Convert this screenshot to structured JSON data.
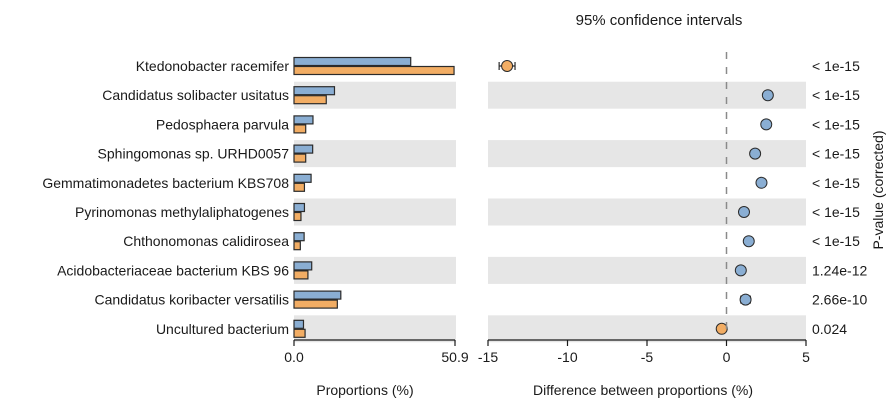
{
  "chart_data": [
    {
      "type": "bar",
      "xlabel": "Proportions (%)",
      "xlim": [
        0,
        50.9
      ],
      "xticks": [
        "0.0",
        "50.9"
      ],
      "categories": [
        "Ktedonobacter racemifer",
        "Candidatus solibacter usitatus",
        "Pedosphaera parvula",
        "Sphingomonas sp. URHD0057",
        "Gemmatimonadetes bacterium KBS708",
        "Pyrinomonas methylaliphatogenes",
        "Chthonomonas calidirosea",
        "Acidobacteriaceae bacterium KBS 96",
        "Candidatus koribacter versatilis",
        "Uncultured bacterium"
      ],
      "series": [
        {
          "color": "#8aaed3",
          "values": [
            36.9,
            12.8,
            6.0,
            5.9,
            5.4,
            3.3,
            3.2,
            5.6,
            14.8,
            3.0
          ]
        },
        {
          "color": "#f2ad64",
          "values": [
            50.6,
            10.2,
            3.7,
            3.7,
            3.3,
            2.2,
            2.0,
            4.4,
            13.7,
            3.5
          ]
        }
      ],
      "orientation": "horizontal"
    },
    {
      "type": "scatter",
      "title": "95% confidence intervals",
      "xlabel": "Difference between proportions (%)",
      "xlim": [
        -15,
        5
      ],
      "xticks": [
        -15,
        -10,
        -5,
        0,
        5
      ],
      "y2label": "P-value (corrected)",
      "points": [
        {
          "x": -13.8,
          "ci": [
            -14.3,
            -13.3
          ],
          "color": "#f2ad64",
          "p_value": "< 1e-15"
        },
        {
          "x": 2.6,
          "ci": [
            2.4,
            2.8
          ],
          "color": "#8aaed3",
          "p_value": "< 1e-15"
        },
        {
          "x": 2.5,
          "ci": [
            2.3,
            2.7
          ],
          "color": "#8aaed3",
          "p_value": "< 1e-15"
        },
        {
          "x": 1.8,
          "ci": [
            1.6,
            2.0
          ],
          "color": "#8aaed3",
          "p_value": "< 1e-15"
        },
        {
          "x": 2.2,
          "ci": [
            2.0,
            2.4
          ],
          "color": "#8aaed3",
          "p_value": "< 1e-15"
        },
        {
          "x": 1.1,
          "ci": [
            0.95,
            1.25
          ],
          "color": "#8aaed3",
          "p_value": "< 1e-15"
        },
        {
          "x": 1.4,
          "ci": [
            1.25,
            1.55
          ],
          "color": "#8aaed3",
          "p_value": "< 1e-15"
        },
        {
          "x": 0.9,
          "ci": [
            0.7,
            1.1
          ],
          "color": "#8aaed3",
          "p_value": "1.24e-12"
        },
        {
          "x": 1.2,
          "ci": [
            0.9,
            1.5
          ],
          "color": "#8aaed3",
          "p_value": "2.66e-10"
        },
        {
          "x": -0.3,
          "ci": [
            -0.35,
            -0.25
          ],
          "color": "#f2ad64",
          "p_value": "0.024"
        }
      ],
      "reference_line_x": 0
    }
  ]
}
